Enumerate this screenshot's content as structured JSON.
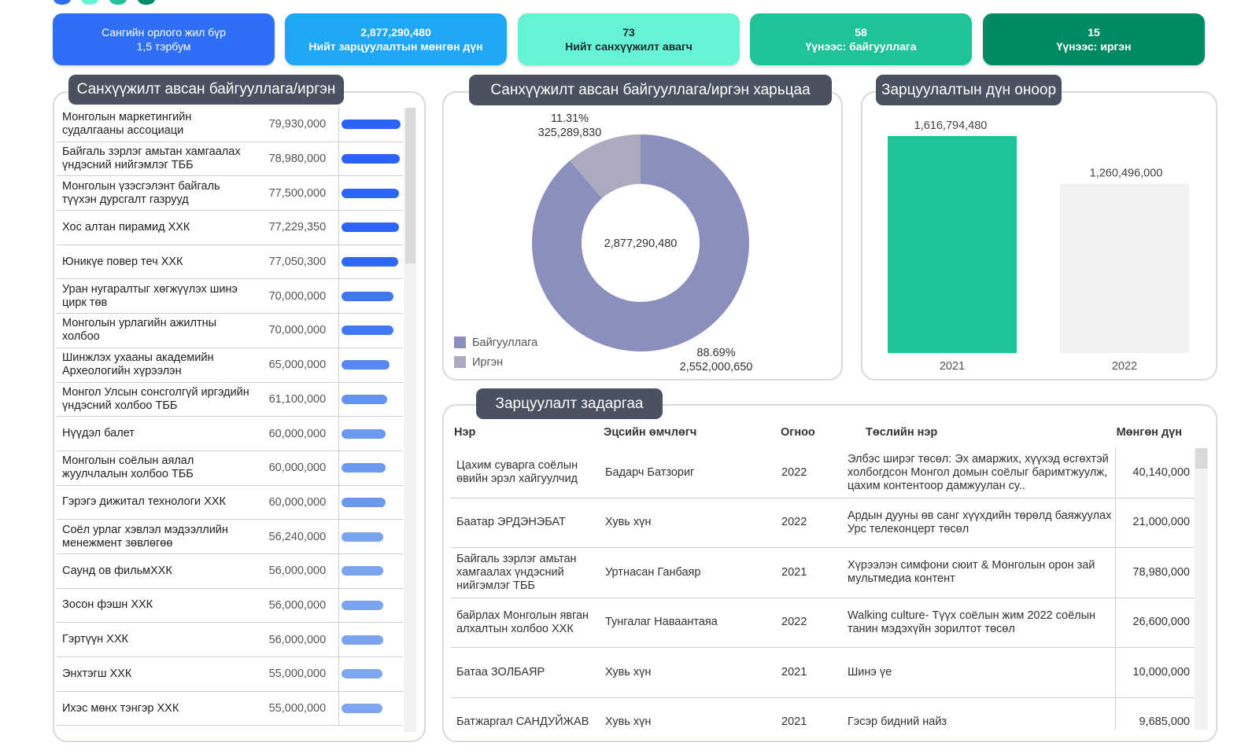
{
  "cards": [
    {
      "lines": [
        "Сангийн орлого жил бүр",
        "1,5 тэрбум"
      ],
      "color": "#2f6ff5",
      "text_color": "#ffffff"
    },
    {
      "lines": [
        "2,877,290,480",
        "Нийт зарцуулалтын мөнгөн дүн"
      ],
      "color": "#1ea7f5",
      "text_color": "#ffffff"
    },
    {
      "lines": [
        "73",
        "Нийт санхүүжилт авагч"
      ],
      "color": "#66f3d3",
      "text_color": "#1f2a33"
    },
    {
      "lines": [
        "58",
        "Үүнээс: байгууллага"
      ],
      "color": "#20c29a",
      "text_color": "#ffffff"
    },
    {
      "lines": [
        "15",
        "Үүнээс: иргэн"
      ],
      "color": "#008a66",
      "text_color": "#ffffff"
    }
  ],
  "chart_data": [
    {
      "type": "bar",
      "orientation": "horizontal",
      "title": "Санхүүжилт авсан байгууллага/иргэн",
      "categories": [
        "Монголын маркетингийн судалгааны ассоциаци",
        "Байгаль зэрлэг амьтан хамгаалах үндэсний нийгэмлэг ТББ",
        "Монголын үзэсгэлэнт байгаль түүхэн дурсгалт газрууд",
        "Хос алтан пирамид ХХК",
        "Юникүе повер теч ХХК",
        "Уран нугаралтыг хөгжүүлэх шинэ цирк төв",
        "Монголын урлагийн ажилтны холбоо",
        "Шинжлэх ухааны академийн Археологийн хүрээлэн",
        "Монгол Улсын сонсголгүй иргэдийн үндэсний холбоо ТББ",
        "Нүүдэл балет",
        "Монголын соёлын аялал жуулчлалын холбоо ТББ",
        "Гэрэгэ дижитал технологи ХХК",
        "Соёл урлаг хэвлэл мэдээллийн менежмент зөвлөгөө",
        "Саунд ов фильмХХК",
        "Зосон фэшн ХХК",
        "Гэртүүн ХХК",
        "Энхтэгш ХХК",
        "Ихэс мөнх тэнгэр ХХК"
      ],
      "values": [
        79930000,
        78980000,
        77500000,
        77229350,
        77050300,
        70000000,
        70000000,
        65000000,
        61100000,
        60000000,
        60000000,
        60000000,
        56240000,
        56000000,
        56000000,
        56000000,
        55000000,
        55000000
      ],
      "value_labels": [
        "79,930,000",
        "78,980,000",
        "77,500,000",
        "77,229,350",
        "77,050,300",
        "70,000,000",
        "70,000,000",
        "65,000,000",
        "61,100,000",
        "60,000,000",
        "60,000,000",
        "60,000,000",
        "56,240,000",
        "56,000,000",
        "56,000,000",
        "56,000,000",
        "55,000,000",
        "55,000,000"
      ],
      "colors": [
        "#2a63f6",
        "#2a63f6",
        "#2d66f6",
        "#2d66f6",
        "#2f68f6",
        "#3f77f3",
        "#4079f3",
        "#5489f2",
        "#6393f1",
        "#6b99f0",
        "#6b99f0",
        "#6b99f0",
        "#7aa3f0",
        "#7aa3f0",
        "#7aa3f0",
        "#7aa3f0",
        "#7fa6f0",
        "#7fa6f0"
      ]
    },
    {
      "type": "pie",
      "title": "Санхүүжилт авсан байгууллага/иргэн харьцаа",
      "categories": [
        "Байгууллага",
        "Иргэн"
      ],
      "values": [
        88.69,
        11.31
      ],
      "value_labels": [
        "88.69%",
        "11.31%"
      ],
      "amounts": [
        2552000650,
        325289830
      ],
      "amount_labels": [
        "2,552,000,650",
        "325,289,830"
      ],
      "total_label": "2,877,290,480",
      "colors": [
        "#8b8fbd",
        "#abaabf"
      ]
    },
    {
      "type": "bar",
      "orientation": "vertical",
      "title": "Зарцуулалтын дүн оноор",
      "categories": [
        "2021",
        "2022"
      ],
      "values": [
        1616794480,
        1260496000
      ],
      "value_labels": [
        "1,616,794,480",
        "1,260,496,000"
      ],
      "colors": [
        "#20c49a",
        "#f2f2f2"
      ]
    }
  ],
  "table": {
    "title": "Зарцуулалт задаргаа",
    "columns": [
      "Нэр",
      "Эцсийн өмчлөгч",
      "Огноо",
      "Төслийн нэр",
      "Мөнгөн дүн"
    ],
    "rows": [
      [
        "Цахим суварга соёлын өвийн эрэл хайгуулчид",
        "Бадарч Батзориг",
        "2022",
        "Элбэс ширэг төсөл: Эх амаржих, хүүхэд өсгөхтэй холбогдсон Монгол домын соёлыг баримтжуулж, цахим контентоор дамжуулан су..",
        "40,140,000"
      ],
      [
        "Баатар ЭРДЭНЭБАТ",
        "Хувь хүн",
        "2022",
        "Ардын дууны өв санг хүүхдийн төрөлд баяжуулах Урс телеконцерт төсөл",
        "21,000,000"
      ],
      [
        "Байгаль зэрлэг амьтан хамгаалах үндэсний нийгэмлэг ТББ",
        "Уртнасан Ганбаяр",
        "2021",
        "Хүрээлэн симфони сюит & Монголын орон зай мультмедиа контент",
        "78,980,000"
      ],
      [
        "байрлах Монголын явган алхалтын холбоо ХХК",
        "Тунгалаг Наваантаяа",
        "2022",
        "Walking culture- Түүх соёлын жим 2022 соёлын танин мэдэхүйн зорилтот төсөл",
        "26,600,000"
      ],
      [
        "Батаа ЗОЛБАЯР",
        "Хувь хүн",
        "2021",
        "Шинэ үе",
        "10,000,000"
      ],
      [
        "Батжаргал САНДУЙЖАВ",
        "Хувь хүн",
        "2021",
        "Гэсэр бидний найз",
        "9,685,000"
      ]
    ]
  }
}
